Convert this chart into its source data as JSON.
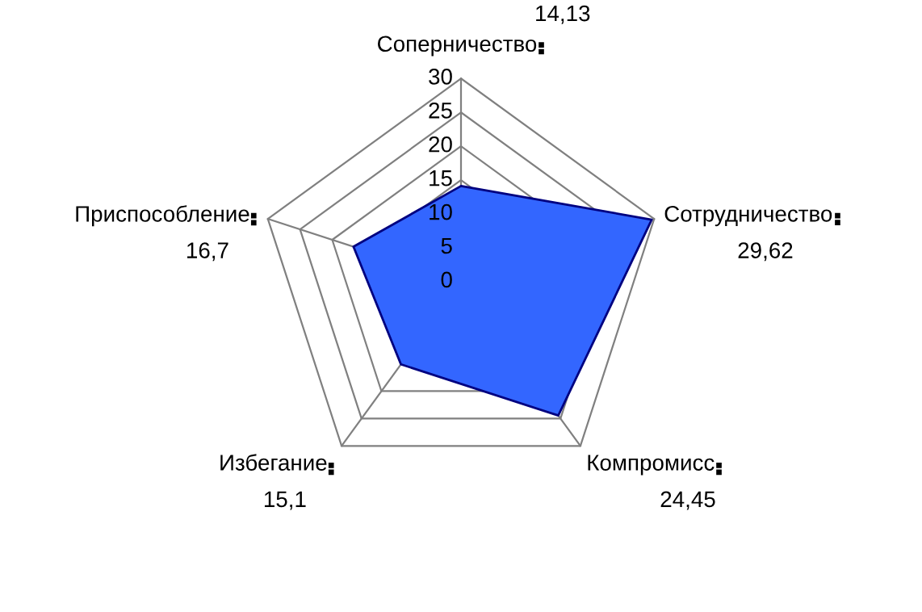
{
  "chart_data": {
    "type": "radar",
    "categories": [
      "Соперничество",
      "Сотрудничество",
      "Компромисс",
      "Избегание",
      "Приспособление"
    ],
    "series": [
      {
        "color": "#3366ff",
        "values": [
          14.13,
          29.62,
          24.45,
          15.1,
          16.7
        ]
      }
    ],
    "value_labels": [
      "14,13",
      "29,62",
      "24,45",
      "15,1",
      "16,7"
    ],
    "ylim": [
      0,
      30
    ],
    "yticks": [
      0,
      5,
      10,
      15,
      20,
      25,
      30
    ],
    "grid": true
  }
}
